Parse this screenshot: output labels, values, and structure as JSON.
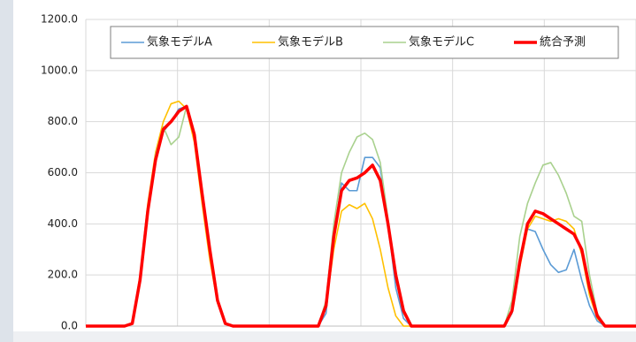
{
  "chart_data": {
    "type": "line",
    "categories": [
      null,
      null,
      null,
      null,
      null,
      null,
      null,
      null,
      null,
      null,
      null,
      null,
      null,
      null,
      null,
      null,
      null,
      null,
      null,
      null,
      null,
      null,
      null,
      null,
      null,
      null,
      null,
      null,
      null,
      null,
      null,
      null,
      null,
      null,
      null,
      null,
      null,
      null,
      null,
      null,
      null,
      null,
      null,
      null,
      null,
      null,
      null,
      null,
      null,
      null,
      null,
      null,
      null,
      null,
      null,
      null,
      null,
      null,
      null,
      null,
      null,
      null,
      null,
      null,
      null,
      null,
      null,
      null,
      null,
      null,
      null,
      null
    ],
    "series": [
      {
        "name": "気象モデルA",
        "color": "#5b9bd5",
        "values": [
          0,
          0,
          0,
          0,
          0,
          0,
          10,
          190,
          460,
          650,
          760,
          800,
          850,
          860,
          740,
          510,
          290,
          100,
          10,
          0,
          0,
          0,
          0,
          0,
          0,
          0,
          0,
          0,
          0,
          0,
          0,
          50,
          350,
          560,
          530,
          530,
          660,
          660,
          620,
          400,
          150,
          30,
          0,
          0,
          0,
          0,
          0,
          0,
          0,
          0,
          0,
          0,
          0,
          0,
          0,
          50,
          250,
          380,
          370,
          300,
          240,
          210,
          220,
          300,
          180,
          80,
          20,
          0,
          0,
          0,
          0,
          0
        ]
      },
      {
        "name": "気象モデルB",
        "color": "#ffc000",
        "values": [
          0,
          0,
          0,
          0,
          0,
          0,
          10,
          200,
          480,
          680,
          800,
          870,
          880,
          850,
          720,
          480,
          260,
          90,
          10,
          0,
          0,
          0,
          0,
          0,
          0,
          0,
          0,
          0,
          0,
          0,
          0,
          80,
          300,
          450,
          475,
          460,
          480,
          420,
          300,
          150,
          40,
          0,
          0,
          0,
          0,
          0,
          0,
          0,
          0,
          0,
          0,
          0,
          0,
          0,
          0,
          60,
          230,
          380,
          430,
          420,
          410,
          420,
          410,
          380,
          280,
          120,
          30,
          0,
          0,
          0,
          0,
          0
        ]
      },
      {
        "name": "気象モデルC",
        "color": "#a9d18e",
        "values": [
          0,
          0,
          0,
          0,
          0,
          0,
          10,
          190,
          470,
          670,
          780,
          710,
          740,
          860,
          740,
          500,
          280,
          100,
          10,
          0,
          0,
          0,
          0,
          0,
          0,
          0,
          0,
          0,
          0,
          0,
          0,
          100,
          400,
          600,
          680,
          740,
          755,
          730,
          640,
          420,
          200,
          50,
          0,
          0,
          0,
          0,
          0,
          0,
          0,
          0,
          0,
          0,
          0,
          0,
          0,
          100,
          350,
          480,
          560,
          630,
          640,
          590,
          520,
          430,
          410,
          200,
          50,
          0,
          0,
          0,
          0,
          0
        ]
      },
      {
        "name": "統合予測",
        "color": "#ff0000",
        "values": [
          0,
          0,
          0,
          0,
          0,
          0,
          10,
          180,
          450,
          650,
          770,
          800,
          840,
          860,
          750,
          520,
          300,
          100,
          10,
          0,
          0,
          0,
          0,
          0,
          0,
          0,
          0,
          0,
          0,
          0,
          0,
          80,
          350,
          530,
          570,
          580,
          600,
          630,
          570,
          400,
          200,
          60,
          0,
          0,
          0,
          0,
          0,
          0,
          0,
          0,
          0,
          0,
          0,
          0,
          0,
          60,
          250,
          400,
          450,
          440,
          420,
          400,
          380,
          360,
          300,
          150,
          40,
          0,
          0,
          0,
          0,
          0
        ]
      }
    ],
    "ylim": [
      0,
      1200
    ],
    "yticks": [
      {
        "value": 0,
        "label": "0.0"
      },
      {
        "value": 200,
        "label": "200.0"
      },
      {
        "value": 400,
        "label": "400.0"
      },
      {
        "value": 600,
        "label": "600.0"
      },
      {
        "value": 800,
        "label": "800.0"
      },
      {
        "value": 1000,
        "label": "1000.0"
      },
      {
        "value": 1200,
        "label": "1200.0"
      }
    ],
    "grid": true,
    "legend": "top-right"
  }
}
